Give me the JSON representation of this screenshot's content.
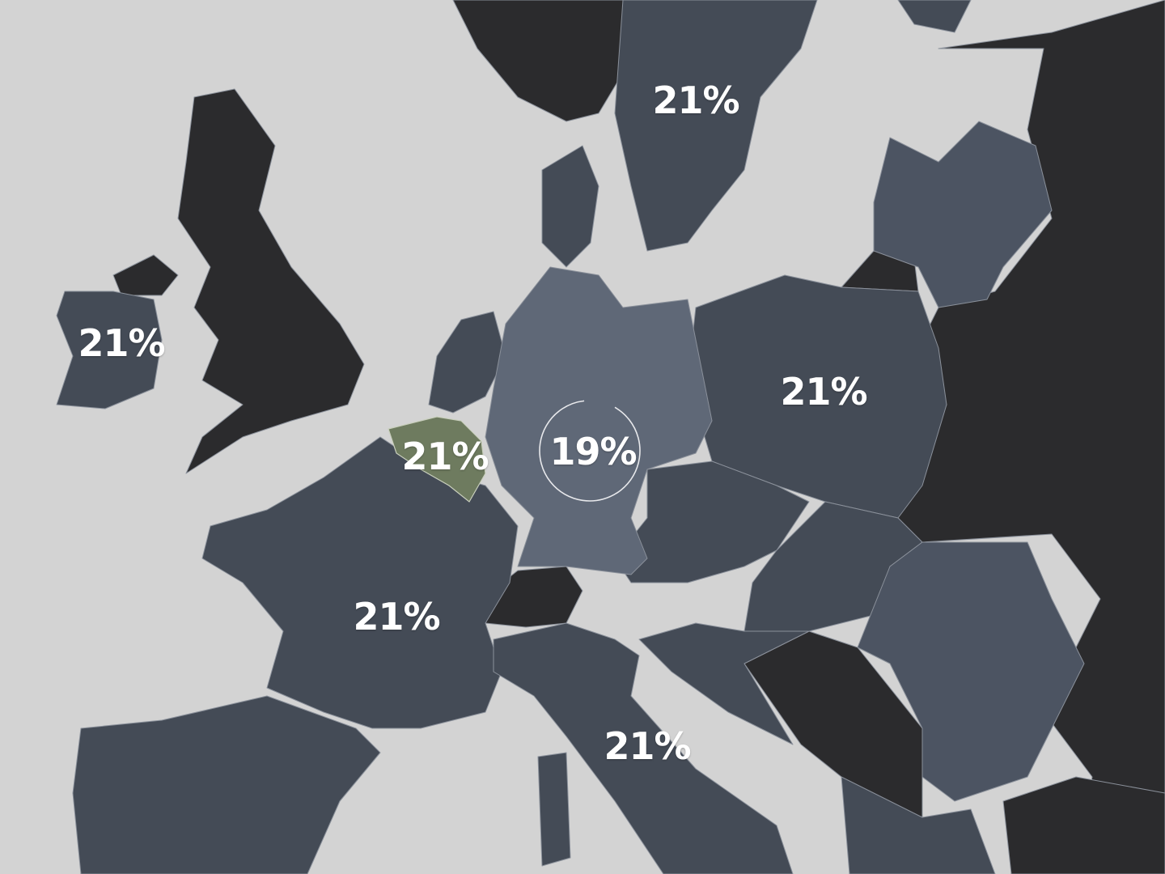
{
  "map": {
    "colors": {
      "sea": "#d3d3d3",
      "non_eu": "#2b2b2d",
      "eu": "#444b56",
      "eu_light": "#4c5462",
      "highlight_germany": "#5f6877",
      "highlight_belgium": "#6e7b5f"
    },
    "labels": [
      {
        "country": "Ireland",
        "value": "21%"
      },
      {
        "country": "Sweden",
        "value": "21%"
      },
      {
        "country": "Poland",
        "value": "21%"
      },
      {
        "country": "Belgium",
        "value": "21%"
      },
      {
        "country": "Germany",
        "value": "19%"
      },
      {
        "country": "France",
        "value": "21%"
      },
      {
        "country": "Italy",
        "value": "21%"
      }
    ],
    "germany_ring_fill_percent": 90
  }
}
